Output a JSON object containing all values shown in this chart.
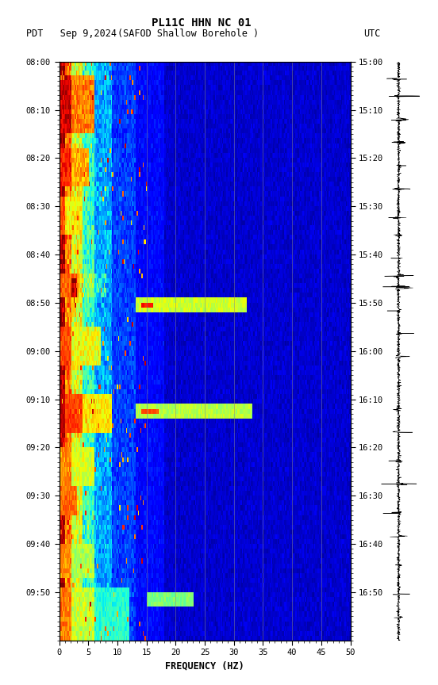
{
  "title_line1": "PL11C HHN NC 01",
  "title_line2_left": "PDT   Sep 9,2024",
  "title_line2_center": "(SAFOD Shallow Borehole )",
  "title_line2_right": "UTC",
  "xlabel": "FREQUENCY (HZ)",
  "xlim": [
    0,
    50
  ],
  "freq_ticks": [
    0,
    5,
    10,
    15,
    20,
    25,
    30,
    35,
    40,
    45,
    50
  ],
  "pdt_ticks": [
    "08:00",
    "08:10",
    "08:20",
    "08:30",
    "08:40",
    "08:50",
    "09:00",
    "09:10",
    "09:20",
    "09:30",
    "09:40",
    "09:50"
  ],
  "utc_ticks": [
    "15:00",
    "15:10",
    "15:20",
    "15:30",
    "15:40",
    "15:50",
    "16:00",
    "16:10",
    "16:20",
    "16:30",
    "16:40",
    "16:50"
  ],
  "n_time": 120,
  "n_freq": 250,
  "background_color": "#ffffff",
  "colormap": "jet",
  "vmin": 0.0,
  "vmax": 1.0,
  "vertical_lines_freq": [
    15,
    20,
    25,
    30,
    35,
    40,
    45
  ],
  "figsize": [
    5.52,
    8.64
  ],
  "dpi": 100
}
